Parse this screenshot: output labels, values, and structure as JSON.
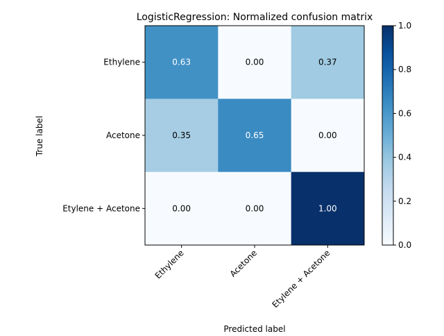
{
  "chart_data": {
    "type": "heatmap",
    "title": "LogisticRegression: Normalized confusion matrix",
    "xlabel": "Predicted label",
    "ylabel": "True label",
    "row_labels": [
      "Ethylene",
      "Acetone",
      "Etylene + Acetone"
    ],
    "col_labels": [
      "Ethylene",
      "Acetone",
      "Etylene + Acetone"
    ],
    "values": [
      [
        0.63,
        0.0,
        0.37
      ],
      [
        0.35,
        0.65,
        0.0
      ],
      [
        0.0,
        0.0,
        1.0
      ]
    ],
    "cell_text": [
      [
        "0.63",
        "0.00",
        "0.37"
      ],
      [
        "0.35",
        "0.65",
        "0.00"
      ],
      [
        "0.00",
        "0.00",
        "1.00"
      ]
    ],
    "colormap": "Blues",
    "vmin": 0.0,
    "vmax": 1.0,
    "colorbar_ticks": [
      0.0,
      0.2,
      0.4,
      0.6,
      0.8,
      1.0
    ],
    "colorbar_tick_labels": [
      "0.0",
      "0.2",
      "0.4",
      "0.6",
      "0.8",
      "1.0"
    ],
    "text_colors": {
      "light": "#ffffff",
      "dark": "#000000"
    },
    "grid": false,
    "legend": "colorbar-right"
  }
}
